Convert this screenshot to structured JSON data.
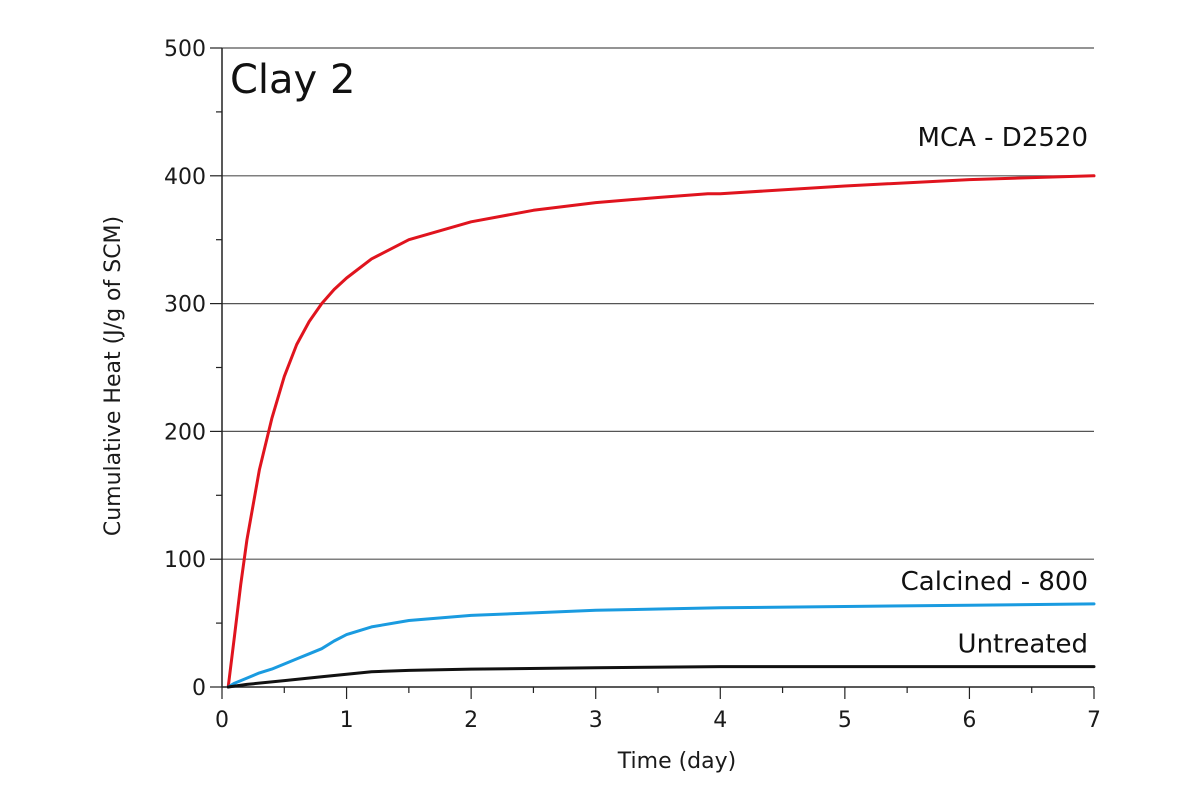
{
  "chart_data": {
    "type": "line",
    "title": "",
    "panel_label": "Clay 2",
    "xlabel": "Time (day)",
    "ylabel": "Cumulative Heat (J/g of SCM)",
    "xlim": [
      0,
      7
    ],
    "ylim": [
      0,
      500
    ],
    "x_ticks": [
      0,
      1,
      2,
      3,
      4,
      5,
      6,
      7
    ],
    "y_ticks": [
      0,
      100,
      200,
      300,
      400,
      500
    ],
    "grid": "horizontal",
    "legend": "inline labels at right end of each curve",
    "series": [
      {
        "name": "MCA - D2520",
        "color": "#e0141e",
        "x": [
          0.05,
          0.1,
          0.15,
          0.2,
          0.3,
          0.4,
          0.5,
          0.6,
          0.7,
          0.8,
          0.9,
          1.0,
          1.2,
          1.5,
          2.0,
          2.5,
          3.0,
          3.5,
          3.9,
          4.0,
          5.0,
          6.0,
          7.0
        ],
        "y": [
          0,
          40,
          80,
          115,
          170,
          210,
          243,
          268,
          286,
          300,
          311,
          320,
          335,
          350,
          364,
          373,
          379,
          383,
          386,
          386,
          392,
          397,
          400
        ]
      },
      {
        "name": "Calcined - 800",
        "color": "#1a9be0",
        "x": [
          0.05,
          0.1,
          0.2,
          0.3,
          0.4,
          0.5,
          0.6,
          0.7,
          0.8,
          0.9,
          1.0,
          1.2,
          1.5,
          2.0,
          2.5,
          3.0,
          4.0,
          5.0,
          6.0,
          7.0
        ],
        "y": [
          0,
          3,
          7,
          11,
          14,
          18,
          22,
          26,
          30,
          36,
          41,
          47,
          52,
          56,
          58,
          60,
          62,
          63,
          64,
          65
        ]
      },
      {
        "name": "Untreated",
        "color": "#111111",
        "x": [
          0.05,
          0.2,
          0.5,
          0.8,
          1.0,
          1.2,
          1.5,
          2.0,
          3.0,
          4.0,
          5.0,
          6.0,
          7.0
        ],
        "y": [
          0,
          2,
          5,
          8,
          10,
          12,
          13,
          14,
          15,
          16,
          16,
          16,
          16
        ]
      }
    ]
  }
}
